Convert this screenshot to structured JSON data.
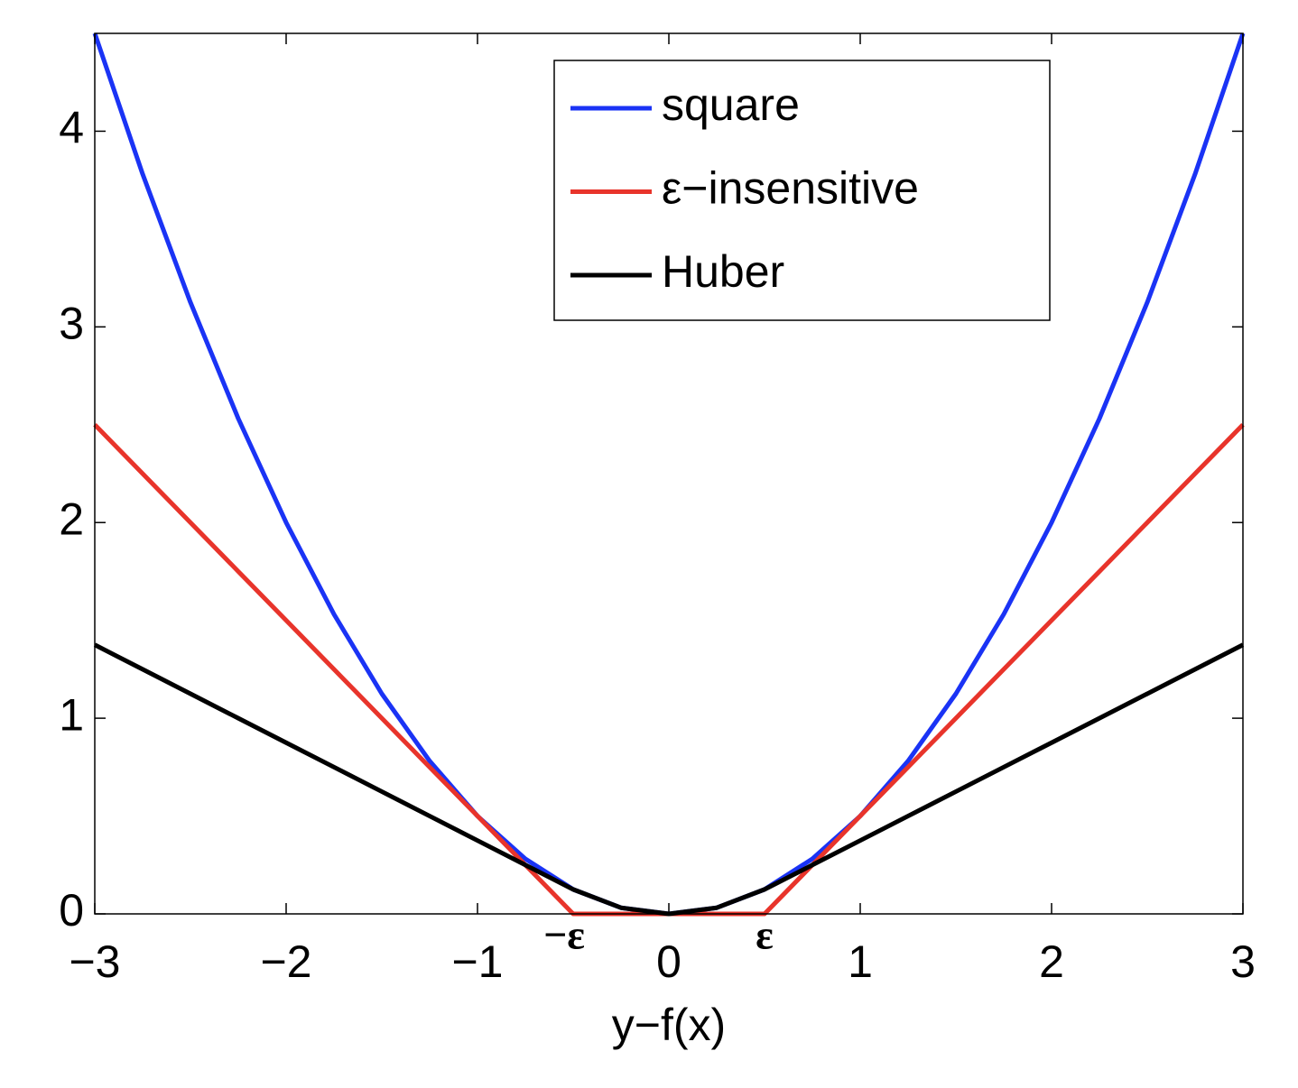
{
  "chart_data": {
    "type": "line",
    "xlabel": "y−f(x)",
    "x": [
      -3,
      -2.75,
      -2.5,
      -2.25,
      -2,
      -1.75,
      -1.5,
      -1.25,
      -1,
      -0.75,
      -0.5,
      -0.25,
      0,
      0.25,
      0.5,
      0.75,
      1,
      1.25,
      1.5,
      1.75,
      2,
      2.25,
      2.5,
      2.75,
      3
    ],
    "series": [
      {
        "name": "square",
        "color": "#1a33f5",
        "values": [
          4.5,
          3.78125,
          3.125,
          2.53125,
          2,
          1.53125,
          1.125,
          0.78125,
          0.5,
          0.28125,
          0.125,
          0.03125,
          0,
          0.03125,
          0.125,
          0.28125,
          0.5,
          0.78125,
          1.125,
          1.53125,
          2,
          2.53125,
          3.125,
          3.78125,
          4.5
        ]
      },
      {
        "name": "ε−insensitive",
        "color": "#e8342b",
        "values": [
          2.5,
          2.25,
          2,
          1.75,
          1.5,
          1.25,
          1,
          0.75,
          0.5,
          0.25,
          0,
          0,
          0,
          0,
          0,
          0.25,
          0.5,
          0.75,
          1,
          1.25,
          1.5,
          1.75,
          2,
          2.25,
          2.5
        ]
      },
      {
        "name": "Huber",
        "color": "#000000",
        "values": [
          1.375,
          1.25,
          1.125,
          1,
          0.875,
          0.75,
          0.625,
          0.5,
          0.375,
          0.25,
          0.125,
          0.03125,
          0,
          0.03125,
          0.125,
          0.25,
          0.375,
          0.5,
          0.625,
          0.75,
          0.875,
          1,
          1.125,
          1.25,
          1.375
        ]
      }
    ],
    "xlim": [
      -3,
      3
    ],
    "ylim": [
      0,
      4.5
    ],
    "xticks": [
      {
        "value": -3,
        "label": "−3"
      },
      {
        "value": -2,
        "label": "−2"
      },
      {
        "value": -1,
        "label": "−1"
      },
      0,
      1,
      2,
      3
    ],
    "yticks": [
      0,
      1,
      2,
      3,
      4
    ],
    "annotations": [
      {
        "x": -0.5,
        "text": "−ε"
      },
      {
        "x": 0.5,
        "text": "ε"
      }
    ],
    "grid": false,
    "legend": "top"
  }
}
